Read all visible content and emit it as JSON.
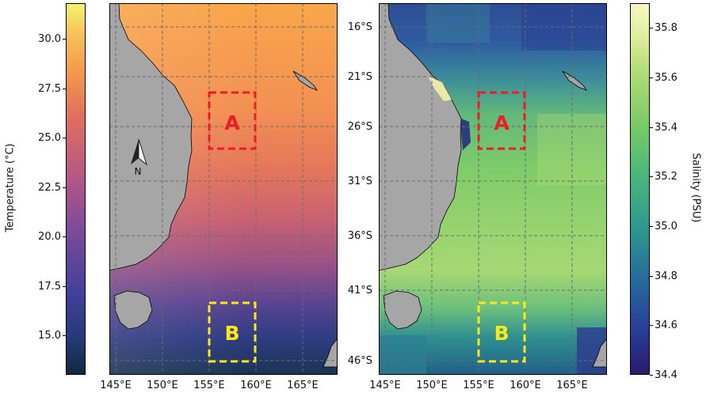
{
  "temperature_colorbar": {
    "label": "Temperature (°C)",
    "ticks": [
      "30.0",
      "27.5",
      "25.0",
      "22.5",
      "20.0",
      "17.5",
      "15.0"
    ],
    "range": [
      13.0,
      31.8
    ]
  },
  "salinity_colorbar": {
    "label": "Salinity (PSU)",
    "ticks": [
      "35.8",
      "35.6",
      "35.4",
      "35.2",
      "35.0",
      "34.8",
      "34.6",
      "34.4"
    ],
    "range": [
      34.4,
      35.9
    ]
  },
  "lon_ticks": [
    "145°E",
    "150°E",
    "155°E",
    "160°E",
    "165°E"
  ],
  "lat_ticks": [
    "16°S",
    "21°S",
    "26°S",
    "31°S",
    "36°S",
    "41°S",
    "46°S"
  ],
  "boxes": {
    "a": {
      "label": "A",
      "color": "#ee1c25"
    },
    "b": {
      "label": "B",
      "color": "#ffe81a"
    }
  },
  "north_arrow": {
    "label": "N"
  },
  "colors": {
    "land": "#a6a6a6",
    "grid": "#6b6b6b"
  }
}
